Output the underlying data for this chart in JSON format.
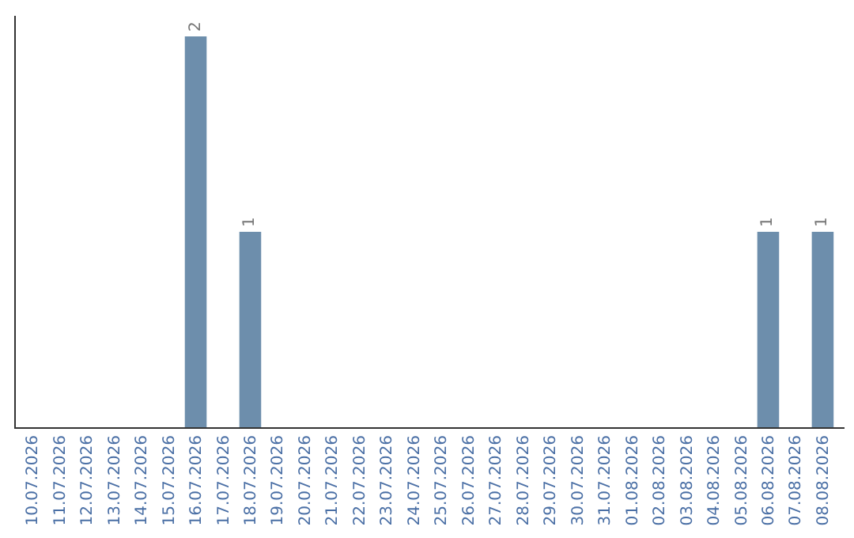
{
  "chart_data": {
    "type": "bar",
    "categories": [
      "10.07.2026",
      "11.07.2026",
      "12.07.2026",
      "13.07.2026",
      "14.07.2026",
      "15.07.2026",
      "16.07.2026",
      "17.07.2026",
      "18.07.2026",
      "19.07.2026",
      "20.07.2026",
      "21.07.2026",
      "22.07.2026",
      "23.07.2026",
      "24.07.2026",
      "25.07.2026",
      "26.07.2026",
      "27.07.2026",
      "28.07.2026",
      "29.07.2026",
      "30.07.2026",
      "31.07.2026",
      "01.08.2026",
      "02.08.2026",
      "03.08.2026",
      "04.08.2026",
      "05.08.2026",
      "06.08.2026",
      "07.08.2026",
      "08.08.2026"
    ],
    "values": [
      0,
      0,
      0,
      0,
      0,
      0,
      2,
      0,
      1,
      0,
      0,
      0,
      0,
      0,
      0,
      0,
      0,
      0,
      0,
      0,
      0,
      0,
      0,
      0,
      0,
      0,
      0,
      1,
      0,
      1
    ],
    "value_labels": [
      null,
      null,
      null,
      null,
      null,
      null,
      "2",
      null,
      "1",
      null,
      null,
      null,
      null,
      null,
      null,
      null,
      null,
      null,
      null,
      null,
      null,
      null,
      null,
      null,
      null,
      null,
      null,
      "1",
      null,
      "1"
    ],
    "color": "#6d8eac",
    "tick_labels": "x"
  }
}
